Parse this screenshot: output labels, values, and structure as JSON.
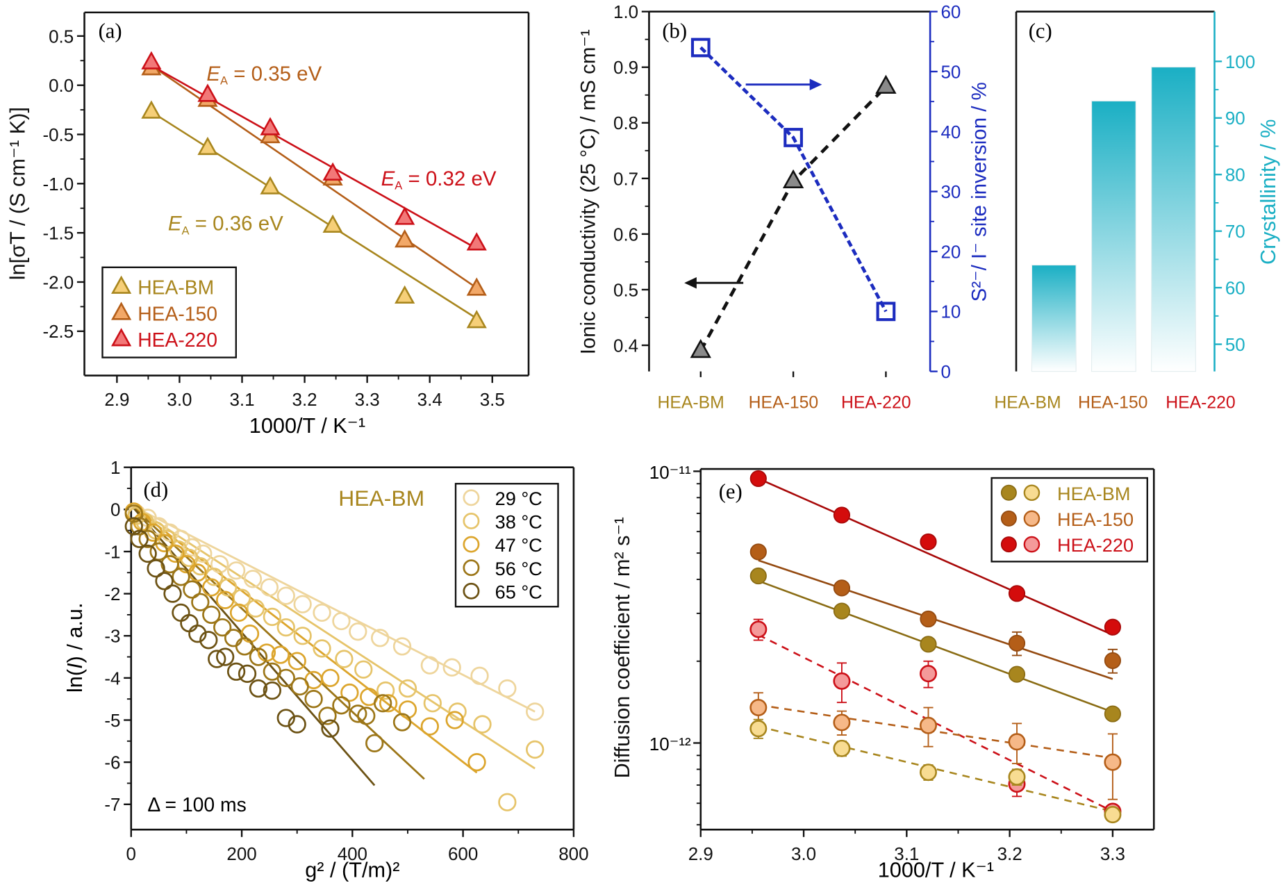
{
  "colors": {
    "HEA-BM": "#a8861e",
    "HEA-150": "#b45e18",
    "HEA-220": "#cc1018",
    "blue": "#1c2cbf",
    "teal": "#1aafc4",
    "black": "#111111"
  },
  "chart_data": [
    {
      "panel": "(a)",
      "type": "scatter",
      "xlabel": "1000/T / K⁻¹",
      "ylabel": "ln[σT / (S cm⁻¹ K)]",
      "xlim": [
        2.848,
        3.558
      ],
      "ylim": [
        -2.95,
        0.74
      ],
      "xticks": [
        2.9,
        3.0,
        3.1,
        3.2,
        3.3,
        3.4,
        3.5
      ],
      "yticks": [
        0.5,
        0.0,
        -0.5,
        -1.0,
        -1.5,
        -2.0,
        -2.5
      ],
      "xtick_labels": [
        "2.9",
        "3.0",
        "3.1",
        "3.2",
        "3.3",
        "3.4",
        "3.5"
      ],
      "ytick_labels": [
        "0.5",
        "0.0",
        "-0.5",
        "-1.0",
        "-1.5",
        "-2.0",
        "-2.5"
      ],
      "marker": "triangle",
      "legend_placement": "bottom-left",
      "x": [
        2.955,
        3.045,
        3.145,
        3.245,
        3.36,
        3.475
      ],
      "series": [
        {
          "name": "HEA-BM",
          "values": [
            -0.27,
            -0.64,
            -1.04,
            -1.43,
            -2.15,
            -2.4
          ],
          "fit": [
            [
              2.955,
              -0.27
            ],
            [
              3.475,
              -2.37
            ]
          ],
          "fill": "#f6cf78",
          "stroke": "#a8861e"
        },
        {
          "name": "HEA-150",
          "values": [
            0.17,
            -0.15,
            -0.52,
            -0.95,
            -1.58,
            -2.07
          ],
          "fit": [
            [
              2.955,
              0.2
            ],
            [
              3.475,
              -2.06
            ]
          ],
          "fill": "#f2a868",
          "stroke": "#b45e18"
        },
        {
          "name": "HEA-220",
          "values": [
            0.23,
            -0.1,
            -0.44,
            -0.9,
            -1.35,
            -1.61
          ],
          "fit": [
            [
              2.955,
              0.2
            ],
            [
              3.475,
              -1.66
            ]
          ],
          "fill": "#f27878",
          "stroke": "#cc1018"
        }
      ],
      "annotations": [
        {
          "series": "HEA-150",
          "symbol": "E",
          "sub": "A",
          "value": " = 0.35 eV"
        },
        {
          "series": "HEA-220",
          "symbol": "E",
          "sub": "A",
          "value": " = 0.32 eV"
        },
        {
          "series": "HEA-BM",
          "symbol": "E",
          "sub": "A",
          "value": " = 0.36 eV"
        }
      ]
    },
    {
      "panel": "(b)",
      "type": "line",
      "categories": [
        "HEA-BM",
        "HEA-150",
        "HEA-220"
      ],
      "ylabel": "Ionic conductivity (25 °C) / mS cm⁻¹",
      "y2label": "S²⁻/ I⁻ site inversion / %",
      "ylim": [
        0.353,
        1.0
      ],
      "y2lim": [
        0,
        60
      ],
      "yticks": [
        0.4,
        0.5,
        0.6,
        0.7,
        0.8,
        0.9,
        1.0
      ],
      "ytick_labels": [
        "0.4",
        "0.5",
        "0.6",
        "0.7",
        "0.8",
        "0.9",
        "1.0"
      ],
      "y2ticks": [
        0,
        10,
        20,
        30,
        40,
        50,
        60
      ],
      "y2tick_labels": [
        "0",
        "10",
        "20",
        "30",
        "40",
        "50",
        "60"
      ],
      "series": [
        {
          "axis": "left",
          "marker": "triangle",
          "line": "dashed",
          "color": "#111111",
          "values": [
            0.39,
            0.695,
            0.865
          ]
        },
        {
          "axis": "right",
          "marker": "square-open",
          "line": "dashed",
          "color": "#1c2cbf",
          "values": [
            54,
            39,
            10
          ]
        }
      ]
    },
    {
      "panel": "(c)",
      "type": "bar",
      "categories": [
        "HEA-BM",
        "HEA-150",
        "HEA-220"
      ],
      "ylabel": "Crystallinity / %",
      "ylim": [
        45.2,
        108.8
      ],
      "yticks": [
        50,
        60,
        70,
        80,
        90,
        100
      ],
      "ytick_labels": [
        "50",
        "60",
        "70",
        "80",
        "90",
        "100"
      ],
      "values": [
        64,
        93,
        99
      ],
      "color": "#1aafc4"
    },
    {
      "panel": "(d)",
      "type": "scatter",
      "title": "HEA-BM",
      "note": "Δ = 100 ms",
      "xlabel": "g² / (T/m)²",
      "ylabel_parts": [
        "ln(",
        "I",
        ") / a.u."
      ],
      "xlim": [
        0,
        800
      ],
      "ylim": [
        -7.6,
        1
      ],
      "xticks": [
        0,
        200,
        400,
        600,
        800
      ],
      "xtick_labels": [
        "0",
        "200",
        "400",
        "600",
        "800"
      ],
      "yticks": [
        1,
        0,
        -1,
        -2,
        -3,
        -4,
        -5,
        -6,
        -7
      ],
      "ytick_labels": [
        "1",
        "0",
        "-1",
        "-2",
        "-3",
        "-4",
        "-5",
        "-6",
        "-7"
      ],
      "legend_placement": "top-right",
      "series": [
        {
          "name": "29 °C",
          "color": "#eed59c",
          "x": [
            10,
            30,
            50,
            70,
            90,
            110,
            130,
            160,
            190,
            220,
            250,
            280,
            310,
            345,
            380,
            410,
            450,
            490,
            540,
            580,
            630,
            680,
            730
          ],
          "y": [
            -0.1,
            -0.2,
            -0.4,
            -0.55,
            -0.7,
            -0.9,
            -1.05,
            -1.3,
            -1.45,
            -1.65,
            -1.85,
            -2.05,
            -2.25,
            -2.45,
            -2.65,
            -2.9,
            -3.05,
            -3.25,
            -3.7,
            -3.75,
            -3.95,
            -4.25,
            -4.8
          ],
          "fit": [
            [
              0,
              0.1
            ],
            [
              730,
              -4.8
            ]
          ]
        },
        {
          "name": "38 °C",
          "color": "#e6c46a",
          "x": [
            10,
            25,
            45,
            65,
            85,
            105,
            125,
            150,
            175,
            200,
            225,
            255,
            280,
            310,
            345,
            385,
            420,
            460,
            500,
            545,
            590,
            635,
            680,
            730
          ],
          "y": [
            -0.15,
            -0.3,
            -0.5,
            -0.7,
            -0.95,
            -1.15,
            -1.35,
            -1.6,
            -1.85,
            -2.1,
            -2.35,
            -2.55,
            -2.8,
            -3.0,
            -3.3,
            -3.55,
            -3.8,
            -4.3,
            -4.25,
            -4.6,
            -4.8,
            -5.1,
            -6.95,
            -5.7
          ],
          "fit": [
            [
              0,
              0.1
            ],
            [
              730,
              -6.15
            ]
          ]
        },
        {
          "name": "47 °C",
          "color": "#dca52c",
          "x": [
            5,
            20,
            40,
            60,
            80,
            100,
            120,
            145,
            170,
            195,
            215,
            245,
            270,
            300,
            330,
            360,
            395,
            430,
            465,
            500,
            540,
            585,
            625
          ],
          "y": [
            -0.05,
            -0.3,
            -0.55,
            -0.8,
            -1.05,
            -1.3,
            -1.5,
            -1.85,
            -2.15,
            -2.45,
            -2.95,
            -3.4,
            -3.45,
            -3.6,
            -4.05,
            -4.0,
            -4.35,
            -4.45,
            -4.6,
            -4.75,
            -5.15,
            -5.0,
            -6.0
          ],
          "fit": [
            [
              0,
              0.1
            ],
            [
              625,
              -6.25
            ]
          ]
        },
        {
          "name": "56 °C",
          "color": "#9c7618",
          "x": [
            5,
            15,
            30,
            50,
            70,
            90,
            110,
            125,
            145,
            165,
            185,
            205,
            230,
            255,
            280,
            305,
            330,
            355,
            380,
            410,
            425,
            455,
            490,
            440
          ],
          "y": [
            -0.1,
            -0.4,
            -0.7,
            -1.0,
            -1.3,
            -1.6,
            -1.9,
            -2.2,
            -2.5,
            -2.8,
            -3.05,
            -3.25,
            -3.5,
            -3.85,
            -4.0,
            -4.2,
            -4.5,
            -4.9,
            -4.65,
            -4.85,
            -4.9,
            -4.6,
            -5.05,
            -5.55
          ],
          "fit": [
            [
              0,
              0.1
            ],
            [
              530,
              -6.4
            ]
          ]
        },
        {
          "name": "65 °C",
          "color": "#6c5214",
          "x": [
            5,
            15,
            30,
            45,
            60,
            75,
            90,
            105,
            120,
            140,
            155,
            170,
            190,
            210,
            230,
            255,
            280,
            300,
            360
          ],
          "y": [
            -0.4,
            -0.7,
            -1.05,
            -1.4,
            -1.7,
            -2.0,
            -2.45,
            -2.7,
            -2.95,
            -3.1,
            -3.55,
            -3.5,
            -3.85,
            -3.9,
            -4.25,
            -4.3,
            -4.95,
            -5.1,
            -5.2
          ],
          "fit": [
            [
              0,
              0.1
            ],
            [
              440,
              -6.55
            ]
          ]
        }
      ]
    },
    {
      "panel": "(e)",
      "type": "scatter",
      "xlabel": "1000/T / K⁻¹",
      "ylabel": "Diffusion coefficient / m² s⁻¹",
      "xlim": [
        2.9,
        3.34
      ],
      "ylim": [
        4.8e-13,
        1.02e-11
      ],
      "yscale": "log",
      "xticks": [
        2.9,
        3.0,
        3.1,
        3.2,
        3.3
      ],
      "xtick_labels": [
        "2.9",
        "3.0",
        "3.1",
        "3.2",
        "3.3"
      ],
      "yticks": [
        1e-11,
        1e-12
      ],
      "ytick_labels": [
        "10⁻¹¹",
        "10⁻¹²"
      ],
      "legend_placement": "top-right",
      "x": [
        2.956,
        3.037,
        3.121,
        3.207,
        3.3
      ],
      "series": [
        {
          "name": "HEA-BM",
          "style": "filled",
          "fill": "#a8861e",
          "stroke": "#8a6c14",
          "values": [
            4.12e-12,
            3.06e-12,
            2.31e-12,
            1.79e-12,
            1.28e-12
          ],
          "err": [
            0,
            0,
            0,
            0,
            0
          ],
          "fit": [
            [
              2.956,
              3.95e-12
            ],
            [
              3.3,
              1.3e-12
            ]
          ],
          "fit_style": "solid"
        },
        {
          "name": "HEA-150",
          "style": "filled",
          "fill": "#b45e18",
          "stroke": "#944a10",
          "values": [
            5.05e-12,
            3.72e-12,
            2.86e-12,
            2.33e-12,
            2.01e-12
          ],
          "err": [
            0,
            0,
            1.5e-13,
            2.3e-13,
            2e-13
          ],
          "fit": [
            [
              2.956,
              4.7e-12
            ],
            [
              3.3,
              1.72e-12
            ]
          ],
          "fit_style": "solid"
        },
        {
          "name": "HEA-220",
          "style": "filled",
          "fill": "#d40c0c",
          "stroke": "#a80808",
          "values": [
            9.4e-12,
            6.9e-12,
            5.5e-12,
            3.55e-12,
            2.67e-12
          ],
          "err": [
            0,
            0,
            0,
            0,
            0
          ],
          "fit": [
            [
              2.956,
              9.4e-12
            ],
            [
              3.3,
              2.5e-12
            ]
          ],
          "fit_style": "solid"
        },
        {
          "name": "HEA-220",
          "style": "open",
          "fill": "#f49a9a",
          "stroke": "#cc1018",
          "values": [
            2.62e-12,
            1.69e-12,
            1.8e-12,
            7.06e-13,
            5.6e-13
          ],
          "err": [
            2.3e-13,
            2.8e-13,
            2e-13,
            7e-14,
            0
          ],
          "fit": [
            [
              2.956,
              2.5e-12
            ],
            [
              3.3,
              5.6e-13
            ]
          ],
          "fit_style": "dashed"
        },
        {
          "name": "HEA-150",
          "style": "open",
          "fill": "#f6b888",
          "stroke": "#b45e18",
          "values": [
            1.35e-12,
            1.19e-12,
            1.16e-12,
            1.01e-12,
            8.5e-13
          ],
          "err": [
            1.8e-13,
            1.2e-13,
            1.9e-13,
            1.7e-13,
            2.3e-13
          ],
          "fit": [
            [
              2.956,
              1.38e-12
            ],
            [
              3.3,
              8.8e-13
            ]
          ],
          "fit_style": "dashed"
        },
        {
          "name": "HEA-BM",
          "style": "open",
          "fill": "#f8dc92",
          "stroke": "#a8861e",
          "values": [
            1.13e-12,
            9.55e-13,
            7.8e-13,
            7.5e-13,
            5.45e-13
          ],
          "err": [
            9e-14,
            6e-14,
            5e-14,
            5e-14,
            0
          ],
          "fit": [
            [
              2.956,
              1.15e-12
            ],
            [
              3.3,
              5.6e-13
            ]
          ],
          "fit_style": "dashed"
        }
      ],
      "legend": [
        "HEA-BM",
        "HEA-150",
        "HEA-220"
      ]
    }
  ]
}
